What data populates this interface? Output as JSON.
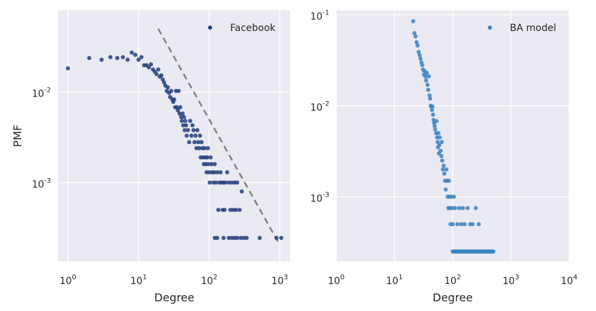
{
  "chart_data": [
    {
      "type": "scatter",
      "xscale": "log",
      "yscale": "log",
      "xlim": [
        0.72,
        1400
      ],
      "ylim": [
        0.000135,
        0.08
      ],
      "xlabel": "Degree",
      "ylabel": "PMF",
      "xticks": [
        "0",
        "1",
        "2",
        "3"
      ],
      "yticks": [
        "-3",
        "-2"
      ],
      "legend_position": "upper right",
      "grid": true,
      "series": [
        {
          "name": "Facebook",
          "color": "#213f7a",
          "points": [
            [
              1,
              0.0183
            ],
            [
              2,
              0.0238
            ],
            [
              3,
              0.0228
            ],
            [
              4,
              0.0243
            ],
            [
              5,
              0.0238
            ],
            [
              6,
              0.0243
            ],
            [
              7,
              0.0228
            ],
            [
              8,
              0.0273
            ],
            [
              9,
              0.0258
            ],
            [
              10,
              0.0228
            ],
            [
              11,
              0.0243
            ],
            [
              12,
              0.0198
            ],
            [
              13,
              0.0198
            ],
            [
              14,
              0.0188
            ],
            [
              15,
              0.0203
            ],
            [
              16,
              0.0178
            ],
            [
              17,
              0.0168
            ],
            [
              18,
              0.0158
            ],
            [
              19,
              0.0178
            ],
            [
              20,
              0.0148
            ],
            [
              21,
              0.0153
            ],
            [
              22,
              0.0138
            ],
            [
              23,
              0.0128
            ],
            [
              24,
              0.0118
            ],
            [
              25,
              0.0103
            ],
            [
              26,
              0.0113
            ],
            [
              27,
              0.0098
            ],
            [
              28,
              0.0088
            ],
            [
              29,
              0.0103
            ],
            [
              30,
              0.0083
            ],
            [
              31,
              0.0078
            ],
            [
              32,
              0.0083
            ],
            [
              33,
              0.0068
            ],
            [
              34,
              0.0103
            ],
            [
              35,
              0.0068
            ],
            [
              36,
              0.0063
            ],
            [
              37,
              0.0103
            ],
            [
              38,
              0.0058
            ],
            [
              39,
              0.0068
            ],
            [
              40,
              0.0053
            ],
            [
              41,
              0.0048
            ],
            [
              42,
              0.0058
            ],
            [
              43,
              0.0043
            ],
            [
              44,
              0.0053
            ],
            [
              45,
              0.0038
            ],
            [
              46,
              0.0048
            ],
            [
              47,
              0.0043
            ],
            [
              48,
              0.0033
            ],
            [
              50,
              0.0038
            ],
            [
              52,
              0.0028
            ],
            [
              54,
              0.0048
            ],
            [
              56,
              0.0033
            ],
            [
              58,
              0.0043
            ],
            [
              60,
              0.0038
            ],
            [
              62,
              0.0028
            ],
            [
              64,
              0.0033
            ],
            [
              66,
              0.0024
            ],
            [
              68,
              0.0038
            ],
            [
              70,
              0.0028
            ],
            [
              72,
              0.0024
            ],
            [
              74,
              0.0033
            ],
            [
              76,
              0.0019
            ],
            [
              78,
              0.0028
            ],
            [
              80,
              0.0024
            ],
            [
              82,
              0.0019
            ],
            [
              84,
              0.0016
            ],
            [
              86,
              0.0024
            ],
            [
              88,
              0.0019
            ],
            [
              90,
              0.0016
            ],
            [
              92,
              0.0013
            ],
            [
              94,
              0.0019
            ],
            [
              96,
              0.0024
            ],
            [
              98,
              0.0016
            ],
            [
              100,
              0.0013
            ],
            [
              102,
              0.001
            ],
            [
              105,
              0.0019
            ],
            [
              108,
              0.0016
            ],
            [
              110,
              0.0013
            ],
            [
              115,
              0.001
            ],
            [
              118,
              0.0013
            ],
            [
              120,
              0.0016
            ],
            [
              125,
              0.001
            ],
            [
              130,
              0.0013
            ],
            [
              135,
              0.0005
            ],
            [
              140,
              0.001
            ],
            [
              145,
              0.0013
            ],
            [
              150,
              0.001
            ],
            [
              155,
              0.0005
            ],
            [
              160,
              0.001
            ],
            [
              165,
              0.0005
            ],
            [
              170,
              0.001
            ],
            [
              180,
              0.0013
            ],
            [
              190,
              0.001
            ],
            [
              200,
              0.0005
            ],
            [
              210,
              0.001
            ],
            [
              220,
              0.0005
            ],
            [
              230,
              0.001
            ],
            [
              240,
              0.0005
            ],
            [
              250,
              0.001
            ],
            [
              270,
              0.0005
            ],
            [
              290,
              0.0008
            ],
            [
              120,
              0.000245
            ],
            [
              130,
              0.000245
            ],
            [
              160,
              0.000245
            ],
            [
              190,
              0.000245
            ],
            [
              210,
              0.000245
            ],
            [
              230,
              0.000245
            ],
            [
              250,
              0.000245
            ],
            [
              280,
              0.000245
            ],
            [
              310,
              0.000245
            ],
            [
              340,
              0.000245
            ],
            [
              520,
              0.000245
            ],
            [
              900,
              0.000245
            ],
            [
              1050,
              0.000245
            ]
          ]
        }
      ],
      "reference_line": {
        "style": "dashed",
        "color": "#808080",
        "from": [
          19,
          0.05
        ],
        "to": [
          1000,
          0.000205
        ]
      }
    },
    {
      "type": "scatter",
      "xscale": "log",
      "yscale": "log",
      "xlim": [
        1,
        10000
      ],
      "ylim": [
        0.000195,
        0.112
      ],
      "xlabel": "Degree",
      "ylabel": "",
      "xticks": [
        "0",
        "1",
        "2",
        "3",
        "4"
      ],
      "yticks": [
        "-3",
        "-2",
        "-1"
      ],
      "legend_position": "upper right",
      "grid": true,
      "series": [
        {
          "name": "BA model",
          "color": "#3a84c2",
          "points": [
            [
              21,
              0.085
            ],
            [
              22,
              0.063
            ],
            [
              23,
              0.058
            ],
            [
              24,
              0.05
            ],
            [
              25,
              0.046
            ],
            [
              26,
              0.039
            ],
            [
              27,
              0.036
            ],
            [
              28,
              0.033
            ],
            [
              29,
              0.03
            ],
            [
              30,
              0.028
            ],
            [
              31,
              0.025
            ],
            [
              32,
              0.022
            ],
            [
              33,
              0.024
            ],
            [
              34,
              0.021
            ],
            [
              35,
              0.019
            ],
            [
              36,
              0.023
            ],
            [
              37,
              0.017
            ],
            [
              38,
              0.015
            ],
            [
              39,
              0.021
            ],
            [
              40,
              0.013
            ],
            [
              41,
              0.012
            ],
            [
              42,
              0.01
            ],
            [
              43,
              0.0098
            ],
            [
              44,
              0.009
            ],
            [
              45,
              0.0098
            ],
            [
              46,
              0.008
            ],
            [
              47,
              0.007
            ],
            [
              48,
              0.0065
            ],
            [
              49,
              0.006
            ],
            [
              50,
              0.0055
            ],
            [
              52,
              0.005
            ],
            [
              53,
              0.0068
            ],
            [
              54,
              0.0045
            ],
            [
              55,
              0.004
            ],
            [
              56,
              0.0035
            ],
            [
              57,
              0.005
            ],
            [
              58,
              0.003
            ],
            [
              59,
              0.0037
            ],
            [
              60,
              0.0045
            ],
            [
              62,
              0.0032
            ],
            [
              64,
              0.0028
            ],
            [
              65,
              0.004
            ],
            [
              66,
              0.0025
            ],
            [
              68,
              0.002
            ],
            [
              70,
              0.0022
            ],
            [
              72,
              0.0018
            ],
            [
              74,
              0.0015
            ],
            [
              76,
              0.0012
            ],
            [
              78,
              0.002
            ],
            [
              80,
              0.0015
            ],
            [
              82,
              0.001
            ],
            [
              84,
              0.00075
            ],
            [
              86,
              0.0015
            ],
            [
              88,
              0.001
            ],
            [
              90,
              0.00075
            ],
            [
              92,
              0.0005
            ],
            [
              95,
              0.001
            ],
            [
              98,
              0.00075
            ],
            [
              100,
              0.0005
            ],
            [
              105,
              0.001
            ],
            [
              110,
              0.00075
            ],
            [
              120,
              0.0005
            ],
            [
              130,
              0.00075
            ],
            [
              140,
              0.0005
            ],
            [
              150,
              0.00075
            ],
            [
              160,
              0.0005
            ],
            [
              180,
              0.00075
            ],
            [
              200,
              0.0005
            ],
            [
              220,
              0.0005
            ],
            [
              250,
              0.00075
            ],
            [
              280,
              0.0005
            ]
          ],
          "floor_band": {
            "y": 0.00025,
            "from": 100,
            "to": 500
          }
        }
      ]
    }
  ]
}
